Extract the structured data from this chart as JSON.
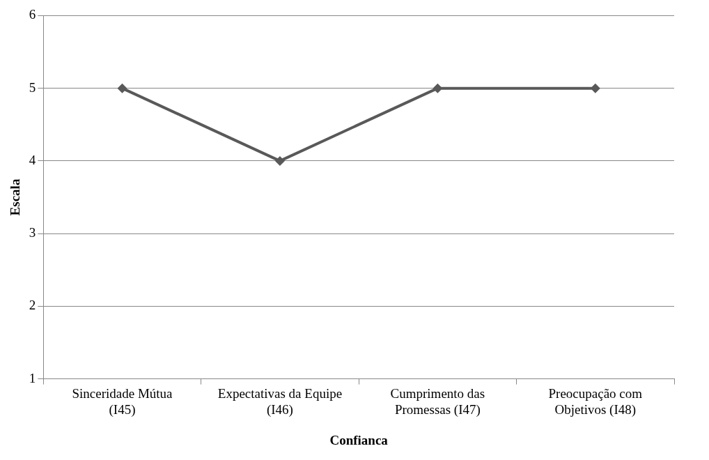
{
  "chart_data": {
    "type": "line",
    "xlabel": "Confianca",
    "ylabel": "Escala",
    "categories": [
      "Sinceridade Mútua (I45)",
      "Expectativas da Equipe (I46)",
      "Cumprimento das Promessas (I47)",
      "Preocupação com Objetivos (I48)"
    ],
    "series": [
      {
        "color": "#595959",
        "values": [
          5,
          4,
          5,
          5
        ]
      }
    ],
    "ylim": [
      1,
      6
    ],
    "yticks": [
      1,
      2,
      3,
      4,
      5,
      6
    ],
    "grid": "y",
    "legend": false,
    "marker": "diamond",
    "line_style": "solid"
  }
}
